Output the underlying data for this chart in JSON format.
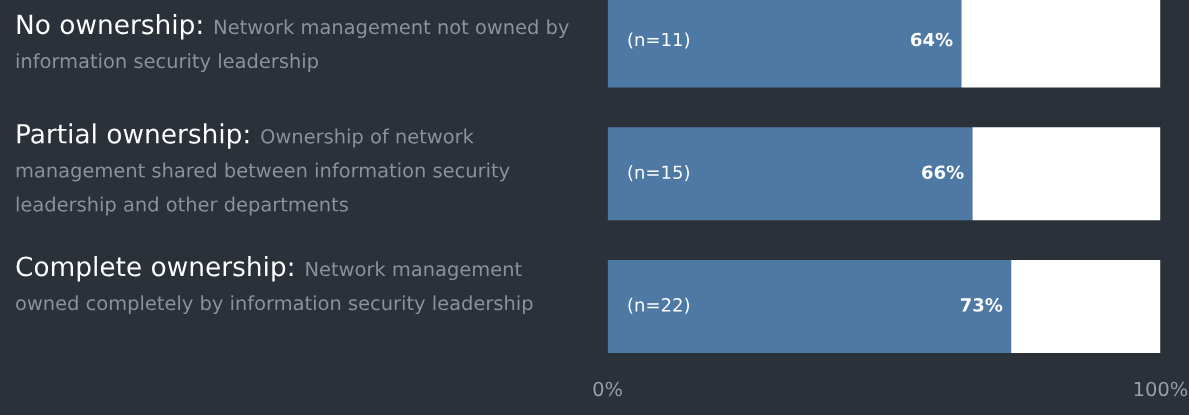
{
  "chart_data": {
    "type": "bar",
    "orientation": "horizontal",
    "stacked": true,
    "categories": [
      "No ownership: Network management not owned by information security leadership",
      "Partial ownership: Ownership of network management shared between information security leadership and other departments",
      "Complete ownership: Network management owned completely by information security leadership"
    ],
    "series": [
      {
        "color": "#4e79a5",
        "values": [
          64,
          66,
          73
        ],
        "value_labels": [
          "64%",
          "66%",
          "73%"
        ]
      },
      {
        "color": "#ffffff",
        "values": [
          36,
          34,
          27
        ]
      }
    ],
    "annotations": [
      "(n=11)",
      "(n=15)",
      "(n=22)"
    ],
    "xlim": [
      0,
      100
    ],
    "xticks": [
      {
        "value": 0,
        "label": "0%"
      },
      {
        "value": 100,
        "label": "100%"
      }
    ],
    "grid": false,
    "legend": false
  }
}
